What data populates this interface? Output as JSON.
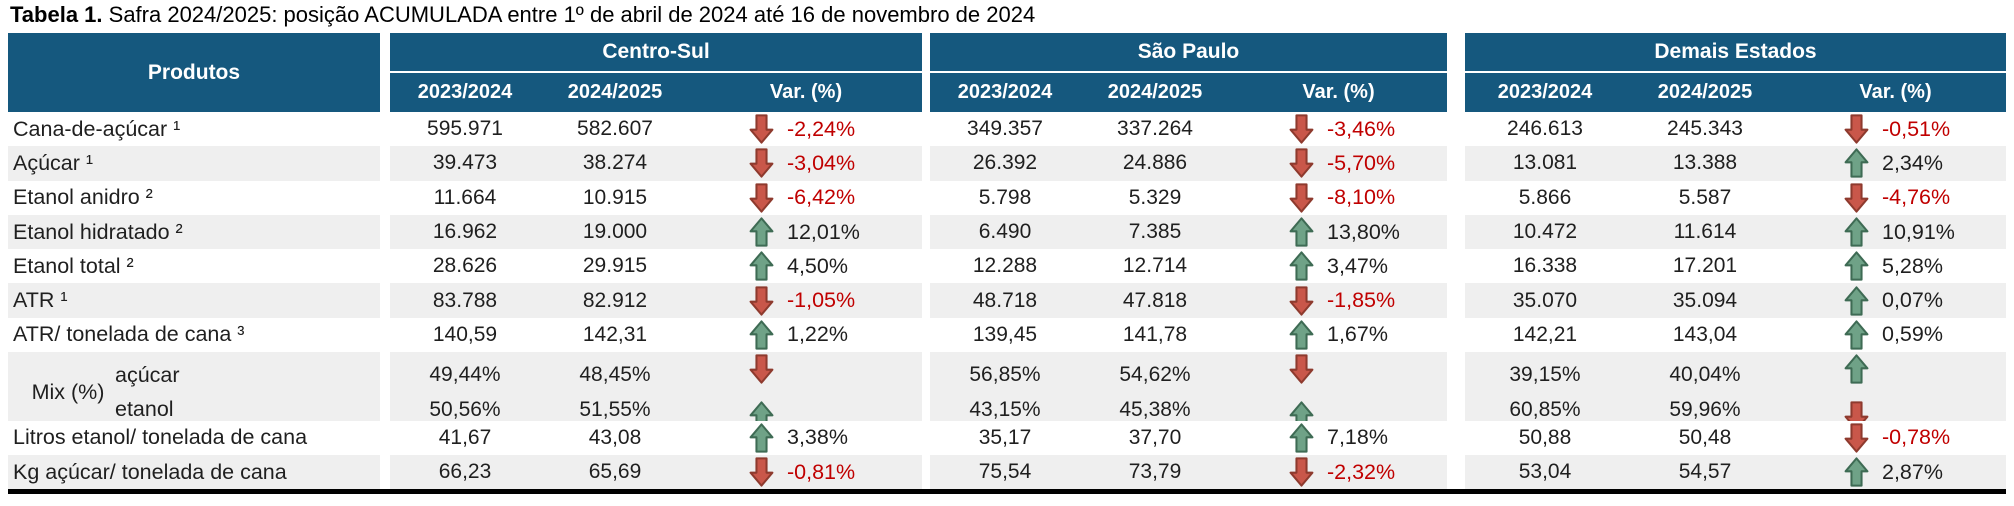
{
  "title": {
    "bold": "Tabela 1.",
    "rest": " Safra 2024/2025: posição ACUMULADA entre 1º de abril de 2024 até 16 de novembro de 2024"
  },
  "colors": {
    "header_bg": "#15587E",
    "stripe": "#EFEFEF",
    "arrow_up": "#6FA287",
    "arrow_up_stroke": "#3E6B54",
    "arrow_down": "#C9574A",
    "arrow_down_stroke": "#8E3A2E",
    "negative_text": "#C00000",
    "positive_text": "#1F1F1F"
  },
  "table": {
    "products_header": "Produtos",
    "groups": [
      {
        "name": "Centro-Sul",
        "col1": "2023/2024",
        "col2": "2024/2025",
        "col3": "Var. (%)"
      },
      {
        "name": "São Paulo",
        "col1": "2023/2024",
        "col2": "2024/2025",
        "col3": "Var. (%)"
      },
      {
        "name": "Demais Estados",
        "col1": "2023/2024",
        "col2": "2024/2025",
        "col3": "Var. (%)"
      }
    ],
    "rows": [
      {
        "label": "Cana-de-açúcar ¹",
        "shade": false,
        "groups": [
          {
            "v1": "595.971",
            "v2": "582.607",
            "dir": "down",
            "pct": "-2,24%"
          },
          {
            "v1": "349.357",
            "v2": "337.264",
            "dir": "down",
            "pct": "-3,46%"
          },
          {
            "v1": "246.613",
            "v2": "245.343",
            "dir": "down",
            "pct": "-0,51%"
          }
        ]
      },
      {
        "label": "Açúcar ¹",
        "shade": true,
        "groups": [
          {
            "v1": "39.473",
            "v2": "38.274",
            "dir": "down",
            "pct": "-3,04%"
          },
          {
            "v1": "26.392",
            "v2": "24.886",
            "dir": "down",
            "pct": "-5,70%"
          },
          {
            "v1": "13.081",
            "v2": "13.388",
            "dir": "up",
            "pct": "2,34%"
          }
        ]
      },
      {
        "label": "Etanol anidro ²",
        "shade": false,
        "groups": [
          {
            "v1": "11.664",
            "v2": "10.915",
            "dir": "down",
            "pct": "-6,42%"
          },
          {
            "v1": "5.798",
            "v2": "5.329",
            "dir": "down",
            "pct": "-8,10%"
          },
          {
            "v1": "5.866",
            "v2": "5.587",
            "dir": "down",
            "pct": "-4,76%"
          }
        ]
      },
      {
        "label": "Etanol hidratado ²",
        "shade": true,
        "groups": [
          {
            "v1": "16.962",
            "v2": "19.000",
            "dir": "up",
            "pct": "12,01%"
          },
          {
            "v1": "6.490",
            "v2": "7.385",
            "dir": "up",
            "pct": "13,80%"
          },
          {
            "v1": "10.472",
            "v2": "11.614",
            "dir": "up",
            "pct": "10,91%"
          }
        ]
      },
      {
        "label": "Etanol total ²",
        "shade": false,
        "groups": [
          {
            "v1": "28.626",
            "v2": "29.915",
            "dir": "up",
            "pct": "4,50%"
          },
          {
            "v1": "12.288",
            "v2": "12.714",
            "dir": "up",
            "pct": "3,47%"
          },
          {
            "v1": "16.338",
            "v2": "17.201",
            "dir": "up",
            "pct": "5,28%"
          }
        ]
      },
      {
        "label": "ATR ¹",
        "shade": true,
        "groups": [
          {
            "v1": "83.788",
            "v2": "82.912",
            "dir": "down",
            "pct": "-1,05%"
          },
          {
            "v1": "48.718",
            "v2": "47.818",
            "dir": "down",
            "pct": "-1,85%"
          },
          {
            "v1": "35.070",
            "v2": "35.094",
            "dir": "up",
            "pct": "0,07%"
          }
        ]
      },
      {
        "label": "ATR/ tonelada de cana ³",
        "shade": false,
        "groups": [
          {
            "v1": "140,59",
            "v2": "142,31",
            "dir": "up",
            "pct": "1,22%"
          },
          {
            "v1": "139,45",
            "v2": "141,78",
            "dir": "up",
            "pct": "1,67%"
          },
          {
            "v1": "142,21",
            "v2": "143,04",
            "dir": "up",
            "pct": "0,59%"
          }
        ]
      },
      {
        "type": "mix",
        "label": "Mix (%)",
        "shade": true,
        "sub": [
          {
            "label": "açúcar",
            "groups": [
              {
                "v1": "49,44%",
                "v2": "48,45%",
                "dir": "down",
                "pct": ""
              },
              {
                "v1": "56,85%",
                "v2": "54,62%",
                "dir": "down",
                "pct": ""
              },
              {
                "v1": "39,15%",
                "v2": "40,04%",
                "dir": "up",
                "pct": ""
              }
            ]
          },
          {
            "label": "etanol",
            "groups": [
              {
                "v1": "50,56%",
                "v2": "51,55%",
                "dir": "up",
                "pct": ""
              },
              {
                "v1": "43,15%",
                "v2": "45,38%",
                "dir": "up",
                "pct": ""
              },
              {
                "v1": "60,85%",
                "v2": "59,96%",
                "dir": "down",
                "pct": ""
              }
            ]
          }
        ]
      },
      {
        "label": "Litros etanol/ tonelada de cana",
        "shade": false,
        "groups": [
          {
            "v1": "41,67",
            "v2": "43,08",
            "dir": "up",
            "pct": "3,38%"
          },
          {
            "v1": "35,17",
            "v2": "37,70",
            "dir": "up",
            "pct": "7,18%"
          },
          {
            "v1": "50,88",
            "v2": "50,48",
            "dir": "down",
            "pct": "-0,78%"
          }
        ]
      },
      {
        "label": "Kg açúcar/ tonelada de cana",
        "shade": true,
        "groups": [
          {
            "v1": "66,23",
            "v2": "65,69",
            "dir": "down",
            "pct": "-0,81%"
          },
          {
            "v1": "75,54",
            "v2": "73,79",
            "dir": "down",
            "pct": "-2,32%"
          },
          {
            "v1": "53,04",
            "v2": "54,57",
            "dir": "up",
            "pct": "2,87%"
          }
        ]
      }
    ]
  }
}
